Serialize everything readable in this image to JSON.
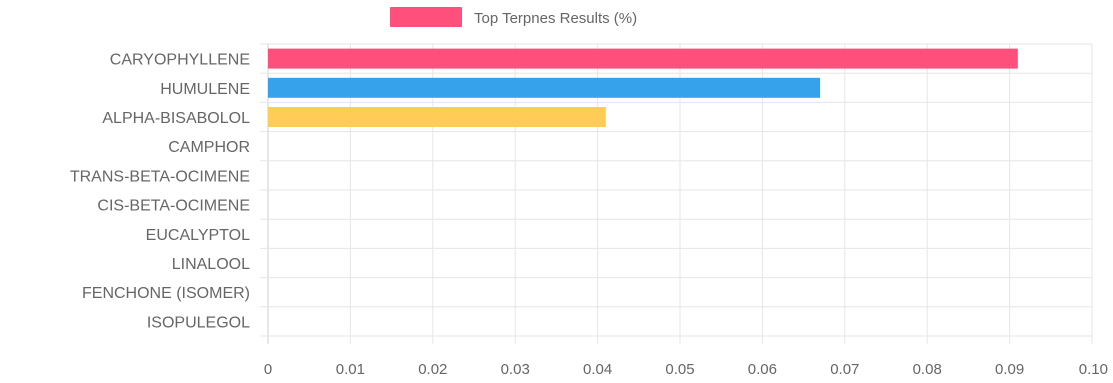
{
  "chart_data": {
    "type": "bar",
    "orientation": "horizontal",
    "categories": [
      "CARYOPHYLLENE",
      "HUMULENE",
      "ALPHA-BISABOLOL",
      "CAMPHOR",
      "TRANS-BETA-OCIMENE",
      "CIS-BETA-OCIMENE",
      "EUCALYPTOL",
      "LINALOOL",
      "FENCHONE (ISOMER)",
      "ISOPULEGOL"
    ],
    "series": [
      {
        "name": "Top Terpnes Results (%)",
        "values": [
          0.091,
          0.067,
          0.041,
          0,
          0,
          0,
          0,
          0,
          0,
          0
        ]
      }
    ],
    "bar_colors": [
      "#ff4f7b",
      "#36a2eb",
      "#ffcd56",
      "#4bc0c0",
      "#9966ff",
      "#ff9f40",
      "#c9cbcf",
      "#ff6384",
      "#36a2eb",
      "#ffcd56"
    ],
    "legend_color": "#ff4f7b",
    "x_ticks": [
      "0",
      "0.01",
      "0.02",
      "0.03",
      "0.04",
      "0.05",
      "0.06",
      "0.07",
      "0.08",
      "0.09",
      "0.10"
    ],
    "xlim": [
      0,
      0.1
    ],
    "grid": true,
    "legend_position": "top"
  }
}
